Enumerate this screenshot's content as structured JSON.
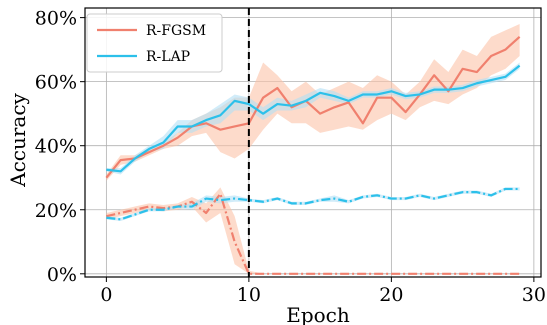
{
  "chart_data": {
    "type": "line",
    "title": "",
    "xlabel": "Epoch",
    "ylabel": "Accuracy",
    "xlim": [
      -1.5,
      30.5
    ],
    "ylim": [
      -1,
      83
    ],
    "xticks": [
      0,
      10,
      20,
      30
    ],
    "xtick_labels": [
      "0",
      "10",
      "20",
      "30"
    ],
    "yticks": [
      0,
      20,
      40,
      60,
      80
    ],
    "ytick_labels": [
      "0%",
      "20%",
      "40%",
      "60%",
      "80%"
    ],
    "grid": true,
    "legend_position": "top-left",
    "vline_x": 10,
    "colors": {
      "R-FGSM": "#f0806e",
      "R-LAP": "#2cc0ea",
      "R-FGSM_band": "#fcc3a8",
      "R-LAP_band": "#b3e0f5"
    },
    "legend": [
      "R-FGSM",
      "R-LAP"
    ],
    "series": [
      {
        "name": "R-FGSM",
        "style": "solid",
        "x": [
          0,
          1,
          2,
          3,
          4,
          5,
          6,
          7,
          8,
          9,
          10,
          11,
          12,
          13,
          14,
          15,
          16,
          17,
          18,
          19,
          20,
          21,
          22,
          23,
          24,
          25,
          26,
          27,
          28,
          29
        ],
        "y": [
          30,
          35.5,
          36,
          38,
          40,
          42.5,
          46,
          47,
          45,
          46,
          47,
          55,
          58,
          52,
          54,
          50,
          52,
          53.5,
          47,
          55,
          55,
          50.5,
          56,
          62,
          57,
          64,
          63,
          68,
          70,
          74
        ],
        "band_low": [
          29,
          34,
          35,
          37,
          39,
          40,
          43,
          44,
          38,
          36,
          39,
          45,
          50,
          47,
          47,
          44,
          45,
          46,
          45,
          48,
          50,
          48,
          52,
          54,
          53,
          56,
          58,
          62,
          64,
          68
        ],
        "band_high": [
          31,
          37,
          37,
          39,
          41,
          44,
          48,
          50,
          52,
          55,
          55,
          66,
          62,
          57,
          60,
          56,
          58,
          60,
          58,
          62,
          60,
          56,
          60,
          67,
          63,
          70,
          68,
          74,
          76,
          78
        ]
      },
      {
        "name": "R-LAP",
        "style": "solid",
        "x": [
          0,
          1,
          2,
          3,
          4,
          5,
          6,
          7,
          8,
          9,
          10,
          11,
          12,
          13,
          14,
          15,
          16,
          17,
          18,
          19,
          20,
          21,
          22,
          23,
          24,
          25,
          26,
          27,
          28,
          29
        ],
        "y": [
          32.5,
          32,
          36,
          39,
          41,
          46,
          46,
          48,
          49.5,
          54,
          53,
          50,
          53,
          52.5,
          54,
          56.5,
          55.5,
          54,
          56,
          56,
          57,
          55.5,
          56,
          57.5,
          57.5,
          58,
          59.5,
          60.5,
          61.5,
          65
        ],
        "band_low": [
          32,
          31,
          35,
          38,
          39,
          44,
          44,
          46,
          47,
          51,
          51,
          48,
          51,
          51,
          52,
          55,
          54,
          53,
          55,
          55,
          56,
          54.5,
          55,
          56.5,
          56.5,
          57,
          58.5,
          59.5,
          60.5,
          64
        ],
        "band_high": [
          33,
          33,
          37,
          40,
          43,
          48,
          48,
          50,
          53,
          56,
          55,
          52,
          55,
          54,
          56,
          58,
          57,
          55,
          57,
          57,
          58,
          56.5,
          57,
          58.5,
          58.5,
          59,
          60.5,
          61.5,
          62.5,
          66
        ]
      },
      {
        "name": "",
        "style": "dashdot",
        "color_key": "R-FGSM",
        "x": [
          0,
          1,
          2,
          3,
          4,
          5,
          6,
          7,
          8,
          9,
          10,
          11,
          12,
          13,
          14,
          15,
          16,
          17,
          18,
          19,
          20,
          21,
          22,
          23,
          24,
          25,
          26,
          27,
          28,
          29
        ],
        "y": [
          18,
          19,
          20,
          21,
          20.5,
          21,
          22.5,
          19,
          25,
          10,
          0,
          0,
          0,
          0,
          0,
          0,
          0,
          0,
          0,
          0,
          0,
          0,
          0,
          0,
          0,
          0,
          0,
          0,
          0,
          0
        ],
        "band_low": [
          17,
          18,
          19,
          20,
          19.5,
          20,
          21,
          16,
          19,
          3,
          0,
          0,
          0,
          0,
          0,
          0,
          0,
          0,
          0,
          0,
          0,
          0,
          0,
          0,
          0,
          0,
          0,
          0,
          0,
          0
        ],
        "band_high": [
          19,
          20,
          21,
          22,
          21.5,
          22,
          24,
          22,
          27,
          18,
          1,
          0,
          0,
          0,
          0,
          0,
          0,
          0,
          0,
          0,
          0,
          0,
          0,
          0,
          0,
          0,
          0,
          0,
          0,
          0
        ]
      },
      {
        "name": "",
        "style": "dashdot",
        "color_key": "R-LAP",
        "x": [
          0,
          1,
          2,
          3,
          4,
          5,
          6,
          7,
          8,
          9,
          10,
          11,
          12,
          13,
          14,
          15,
          16,
          17,
          18,
          19,
          20,
          21,
          22,
          23,
          24,
          25,
          26,
          27,
          28,
          29
        ],
        "y": [
          17.5,
          17,
          18.5,
          20,
          20,
          21,
          21,
          23.5,
          23,
          23.5,
          23,
          22.5,
          23.5,
          22,
          22,
          23,
          23.5,
          22.5,
          24,
          24.5,
          23.5,
          23.5,
          24.5,
          23.5,
          24.5,
          25.5,
          25.5,
          24.5,
          26.5,
          26.5
        ],
        "band_low": [
          17,
          16.5,
          18,
          19.5,
          19.5,
          20.5,
          20,
          22.5,
          22,
          22.5,
          22.5,
          22,
          23,
          21.5,
          21.5,
          22.5,
          22.5,
          22,
          23.5,
          24,
          23,
          23,
          24,
          23,
          24,
          25,
          25,
          24,
          26,
          26
        ],
        "band_high": [
          18,
          17.5,
          19,
          20.5,
          20.5,
          21.5,
          22,
          24.5,
          24,
          24.5,
          23.5,
          23,
          24,
          22.5,
          22.5,
          23.5,
          24.5,
          23,
          24.5,
          25,
          24,
          24,
          25,
          24,
          25,
          26,
          26,
          25,
          27,
          27
        ]
      }
    ]
  }
}
